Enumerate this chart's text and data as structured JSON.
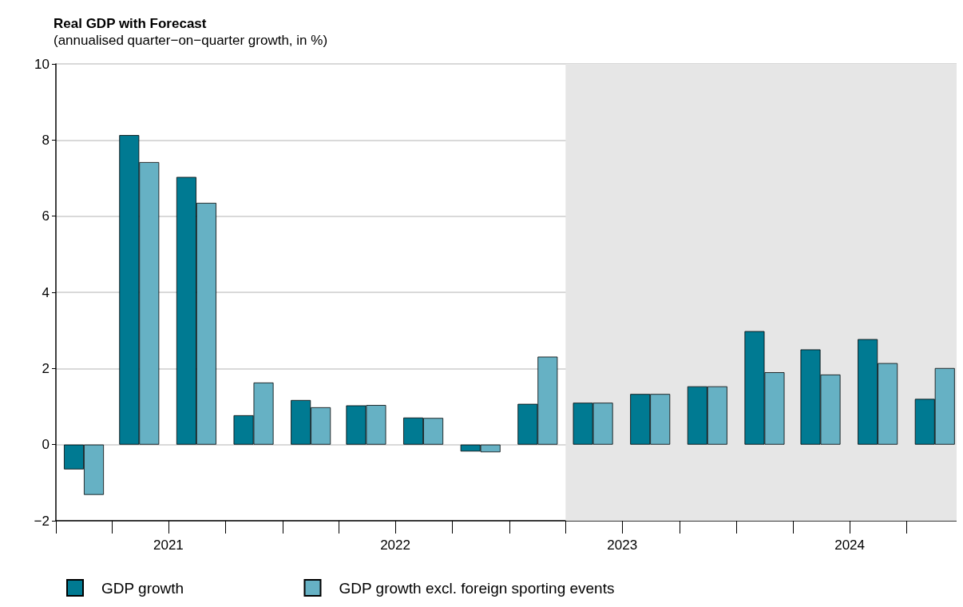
{
  "chart_data": {
    "type": "bar",
    "title": "Real GDP with Forecast",
    "subtitle": "(annualised quarter−on−quarter growth, in %)",
    "x": [
      "2021-02-15",
      "2021-05-15",
      "2021-08-15",
      "2021-11-15",
      "2022-02-15",
      "2022-05-15",
      "2022-08-15",
      "2022-11-15",
      "2023-02-15",
      "2023-05-15",
      "2023-08-15",
      "2023-11-15",
      "2024-02-15",
      "2024-05-15",
      "2024-08-15",
      "2024-11-15"
    ],
    "series": [
      {
        "name": "GDP growth",
        "color": "#007a92",
        "values": [
          -0.65,
          8.13,
          7.03,
          0.77,
          1.17,
          1.03,
          0.71,
          -0.18,
          1.07,
          1.1,
          1.33,
          1.53,
          2.98,
          2.5,
          2.77,
          1.2
        ]
      },
      {
        "name": "GDP growth excl. foreign sporting events",
        "color": "#66b1c4",
        "values": [
          -1.32,
          7.42,
          6.35,
          1.63,
          0.98,
          1.04,
          0.7,
          -0.2,
          2.31,
          1.1,
          1.33,
          1.53,
          1.9,
          1.84,
          2.14,
          2.01
        ]
      }
    ],
    "xlim": [
      "2021-01-01",
      "2024-12-20"
    ],
    "xticks": [
      {
        "value": "2021-01-01",
        "label": null
      },
      {
        "value": "2021-04-01",
        "label": null
      },
      {
        "value": "2021-07-01",
        "label": "2021"
      },
      {
        "value": "2021-10-01",
        "label": null
      },
      {
        "value": "2022-01-01",
        "label": null
      },
      {
        "value": "2022-04-01",
        "label": null
      },
      {
        "value": "2022-07-01",
        "label": "2022"
      },
      {
        "value": "2022-10-01",
        "label": null
      },
      {
        "value": "2023-01-01",
        "label": null
      },
      {
        "value": "2023-04-01",
        "label": null
      },
      {
        "value": "2023-07-01",
        "label": "2023"
      },
      {
        "value": "2023-10-01",
        "label": null
      },
      {
        "value": "2024-01-01",
        "label": null
      },
      {
        "value": "2024-04-01",
        "label": null
      },
      {
        "value": "2024-07-01",
        "label": "2024"
      },
      {
        "value": "2024-10-01",
        "label": null
      }
    ],
    "ylim": [
      -2,
      10
    ],
    "yticks": [
      -2,
      0,
      2,
      4,
      6,
      8,
      10
    ],
    "bands": [
      {
        "axis": "x",
        "from": "2023-04-01",
        "to": "2024-12-20",
        "color": "#e6e6e6"
      }
    ],
    "grid": "y",
    "legend": "bottom"
  }
}
